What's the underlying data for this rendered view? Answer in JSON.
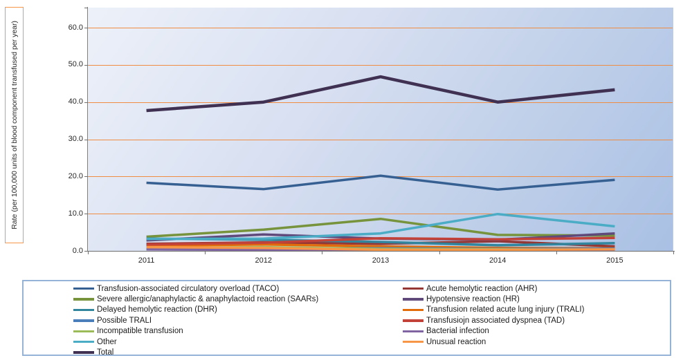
{
  "chart_data": {
    "type": "line",
    "title": "",
    "ylabel": "Rate (per 100,000 units of blood component transfused per year)",
    "xlabel": "",
    "ylim": [
      0,
      60
    ],
    "grid": "horizontal, orange",
    "legend_position": "bottom, two columns",
    "yticks": [
      "0.0",
      "10.0",
      "20.0",
      "30.0",
      "40.0",
      "50.0",
      "60.0"
    ],
    "categories": [
      "2011",
      "2012",
      "2013",
      "2014",
      "2015"
    ],
    "series": [
      {
        "name": "Transfusion-associated circulatory overload (TACO)",
        "color": "#376092",
        "values": [
          18.3,
          16.6,
          20.2,
          16.5,
          19.1
        ]
      },
      {
        "name": "Acute hemolytic reaction (AHR)",
        "color": "#953734",
        "values": [
          1.9,
          2.3,
          1.9,
          2.6,
          1.2
        ]
      },
      {
        "name": "Severe allergic/anaphylactic & anaphylactoid reaction (SAARs)",
        "color": "#77933C",
        "values": [
          3.8,
          5.7,
          8.6,
          4.3,
          4.1
        ]
      },
      {
        "name": "Hypotensive reaction (HR)",
        "color": "#604A7B",
        "values": [
          2.8,
          4.4,
          3.3,
          3.0,
          4.7
        ]
      },
      {
        "name": "Delayed hemolytic reaction (DHR)",
        "color": "#31859C",
        "values": [
          3.3,
          3.0,
          2.4,
          1.5,
          2.1
        ]
      },
      {
        "name": "Transfusion related acute lung injury (TRALI)",
        "color": "#E36C0A",
        "values": [
          1.4,
          1.7,
          1.2,
          0.8,
          0.7
        ]
      },
      {
        "name": "Possible TRALI",
        "color": "#4A7EBB",
        "values": [
          0.9,
          0.7,
          0.7,
          0.5,
          0.6
        ]
      },
      {
        "name": "Transfusiojn associated dyspnea (TAD)",
        "color": "#C2423A",
        "values": [
          1.7,
          2.2,
          3.4,
          3.1,
          3.5
        ]
      },
      {
        "name": "Incompatible transfusion",
        "color": "#9BBB59",
        "values": [
          0.8,
          1.0,
          0.5,
          0.4,
          0.3
        ]
      },
      {
        "name": "Bacterial infection",
        "color": "#8064A2",
        "values": [
          0.4,
          0.3,
          0.2,
          0.2,
          0.2
        ]
      },
      {
        "name": "Other",
        "color": "#4BACC6",
        "values": [
          3.2,
          3.3,
          4.7,
          9.9,
          6.6
        ]
      },
      {
        "name": "Unusual reaction",
        "color": "#F79646",
        "values": [
          1.0,
          0.8,
          0.3,
          0.3,
          0.4
        ]
      },
      {
        "name": "Total",
        "color": "#403152",
        "values": [
          37.7,
          40.0,
          46.8,
          40.0,
          43.3
        ]
      }
    ]
  },
  "legend": {
    "columns": [
      [
        0,
        2,
        4,
        6,
        8,
        10,
        12
      ],
      [
        1,
        3,
        5,
        7,
        9,
        11
      ]
    ]
  }
}
